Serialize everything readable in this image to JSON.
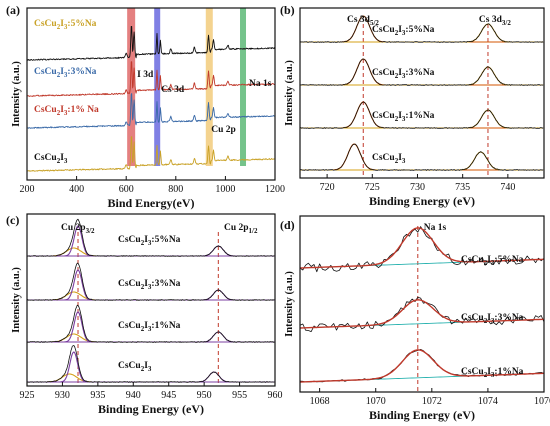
{
  "chart_data": [
    {
      "panel": "(a)",
      "type": "line",
      "xlabel": "Bind Energy(eV)",
      "ylabel": "Intensity (a.u.)",
      "xlim": [
        200,
        1200
      ],
      "xticks": [
        200,
        400,
        600,
        800,
        1000,
        1200
      ],
      "grid": false,
      "series": [
        {
          "name": "CsCu2I3:5%Na",
          "color": "#c9a227"
        },
        {
          "name": "CsCu2I3:3%Na",
          "color": "#3a6aa8"
        },
        {
          "name": "CsCu2I3:1% Na",
          "color": "#c0392b"
        },
        {
          "name": "CsCu2I3",
          "color": "#111111"
        }
      ],
      "peaks": [
        {
          "label": "I 3d",
          "x": 620,
          "band_color": "#d94a4a"
        },
        {
          "label": "Cs 3d",
          "x": 725,
          "band_color": "#4a4ad9"
        },
        {
          "label": "Cu 2p",
          "x": 935,
          "band_color": "#f0c060"
        },
        {
          "label": "Na 1s",
          "x": 1071,
          "band_color": "#3aaa5a"
        }
      ]
    },
    {
      "panel": "(b)",
      "type": "line",
      "xlabel": "Binding Energy (eV)",
      "ylabel": "Intensity (a.u.)",
      "xlim": [
        717,
        744
      ],
      "xticks": [
        720,
        725,
        730,
        735,
        740
      ],
      "grid": false,
      "series": [
        {
          "name": "CsCu2I3:5%Na",
          "peaks": [
            724.0,
            737.8
          ]
        },
        {
          "name": "CsCu2I3:3%Na",
          "peaks": [
            724.0,
            737.8
          ]
        },
        {
          "name": "CsCu2I3:1%Na",
          "peaks": [
            724.0,
            737.8
          ]
        },
        {
          "name": "CsCu2I3",
          "peaks": [
            723.0,
            737.0
          ]
        }
      ],
      "annotations": [
        "Cs 3d5/2",
        "Cs 3d3/2"
      ],
      "ref_lines": [
        724.0,
        737.8
      ]
    },
    {
      "panel": "(c)",
      "type": "line",
      "xlabel": "Binding Energy (eV)",
      "ylabel": "Intensity (a.u.)",
      "xlim": [
        925,
        960
      ],
      "xticks": [
        925,
        930,
        935,
        940,
        945,
        950,
        955,
        960
      ],
      "grid": false,
      "series": [
        {
          "name": "CsCu2I3:5%Na",
          "peaks": [
            932.2,
            952.0
          ]
        },
        {
          "name": "CsCu2I3:3%Na",
          "peaks": [
            932.2,
            952.0
          ]
        },
        {
          "name": "CsCu2I3:1%Na",
          "peaks": [
            932.2,
            952.0
          ]
        },
        {
          "name": "CsCu2I3",
          "peaks": [
            931.6,
            951.4
          ]
        }
      ],
      "annotations": [
        "Cu 2p3/2",
        "Cu 2p1/2"
      ],
      "ref_lines": [
        932.2,
        952.0
      ]
    },
    {
      "panel": "(d)",
      "type": "line",
      "xlabel": "Binding Energy (eV)",
      "ylabel": "Intensity (a.u.)",
      "xlim": [
        1067.3,
        1076
      ],
      "xticks": [
        1068,
        1070,
        1072,
        1074,
        1076
      ],
      "grid": false,
      "series": [
        {
          "name": "CsCu2I3:5%Na",
          "peak": 1071.5
        },
        {
          "name": "CsCu2I3:3%Na",
          "peak": 1071.5
        },
        {
          "name": "CsCu2I3:1%Na",
          "peak": 1071.5
        }
      ],
      "annotations": [
        "Na 1s"
      ],
      "ref_lines": [
        1071.5
      ]
    }
  ]
}
